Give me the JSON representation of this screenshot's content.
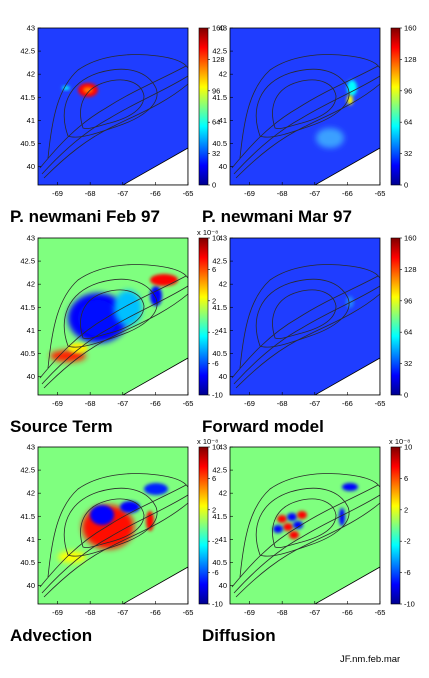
{
  "footer": {
    "credit": "JF.nm.feb.mar"
  },
  "colors": {
    "jet": [
      "#00008f",
      "#0000ff",
      "#0080ff",
      "#00ffff",
      "#80ff80",
      "#ffff00",
      "#ff8000",
      "#ff0000",
      "#800000"
    ],
    "panel_background": "#1f3dff",
    "land": "#ffffff",
    "contour": "#2a2a2a"
  },
  "chart_data": [
    {
      "type": "heatmap",
      "title": "P. newmani Feb 97",
      "xticks": [
        "-69",
        "-68",
        "-67",
        "-66",
        "-65"
      ],
      "yticks": [
        "43",
        "42.5",
        "42",
        "41.5",
        "41",
        "40.5",
        "40"
      ],
      "xlim": [
        -69.6,
        -65
      ],
      "ylim": [
        39.6,
        43
      ],
      "colorbar": {
        "ticks": [
          "160",
          "128",
          "96",
          "64",
          "32",
          "0"
        ],
        "range": [
          0,
          160
        ],
        "exponent": ""
      }
    },
    {
      "type": "heatmap",
      "title": "P. newmani Mar 97",
      "xticks": [
        "-69",
        "-68",
        "-67",
        "-66",
        "-65"
      ],
      "yticks": [
        "43",
        "42.5",
        "42",
        "41.5",
        "41",
        "40.5",
        "40"
      ],
      "xlim": [
        -69.6,
        -65
      ],
      "ylim": [
        39.6,
        43
      ],
      "colorbar": {
        "ticks": [
          "160",
          "128",
          "96",
          "64",
          "32",
          "0"
        ],
        "range": [
          0,
          160
        ],
        "exponent": ""
      }
    },
    {
      "type": "heatmap",
      "title": "Source Term",
      "xticks": [
        "-69",
        "-68",
        "-67",
        "-66",
        "-65"
      ],
      "yticks": [
        "43",
        "42.5",
        "42",
        "41.5",
        "41",
        "40.5",
        "40"
      ],
      "xlim": [
        -69.6,
        -65
      ],
      "ylim": [
        39.6,
        43
      ],
      "colorbar": {
        "ticks": [
          "10",
          "6",
          "2",
          "-2",
          "-6",
          "-10"
        ],
        "range": [
          -10,
          10
        ],
        "exponent": "x 10⁻⁸"
      }
    },
    {
      "type": "heatmap",
      "title": "Forward model",
      "xticks": [
        "-69",
        "-68",
        "-67",
        "-66",
        "-65"
      ],
      "yticks": [
        "43",
        "42.5",
        "42",
        "41.5",
        "41",
        "40.5",
        "40"
      ],
      "xlim": [
        -69.6,
        -65
      ],
      "ylim": [
        39.6,
        43
      ],
      "colorbar": {
        "ticks": [
          "160",
          "128",
          "96",
          "64",
          "32",
          "0"
        ],
        "range": [
          0,
          160
        ],
        "exponent": ""
      }
    },
    {
      "type": "heatmap",
      "title": "Advection",
      "xticks": [
        "-69",
        "-68",
        "-67",
        "-66",
        "-65"
      ],
      "yticks": [
        "43",
        "42.5",
        "42",
        "41.5",
        "41",
        "40.5",
        "40"
      ],
      "xlim": [
        -69.6,
        -65
      ],
      "ylim": [
        39.6,
        43
      ],
      "colorbar": {
        "ticks": [
          "10",
          "6",
          "2",
          "-2",
          "-6",
          "-10"
        ],
        "range": [
          -10,
          10
        ],
        "exponent": "x 10⁻⁸"
      }
    },
    {
      "type": "heatmap",
      "title": "Diffusion",
      "xticks": [
        "-69",
        "-68",
        "-67",
        "-66",
        "-65"
      ],
      "yticks": [
        "43",
        "42.5",
        "42",
        "41.5",
        "41",
        "40.5",
        "40"
      ],
      "xlim": [
        -69.6,
        -65
      ],
      "ylim": [
        39.6,
        43
      ],
      "colorbar": {
        "ticks": [
          "10",
          "6",
          "2",
          "-2",
          "-6",
          "-10"
        ],
        "range": [
          -10,
          10
        ],
        "exponent": "x 10⁻⁸"
      }
    }
  ]
}
